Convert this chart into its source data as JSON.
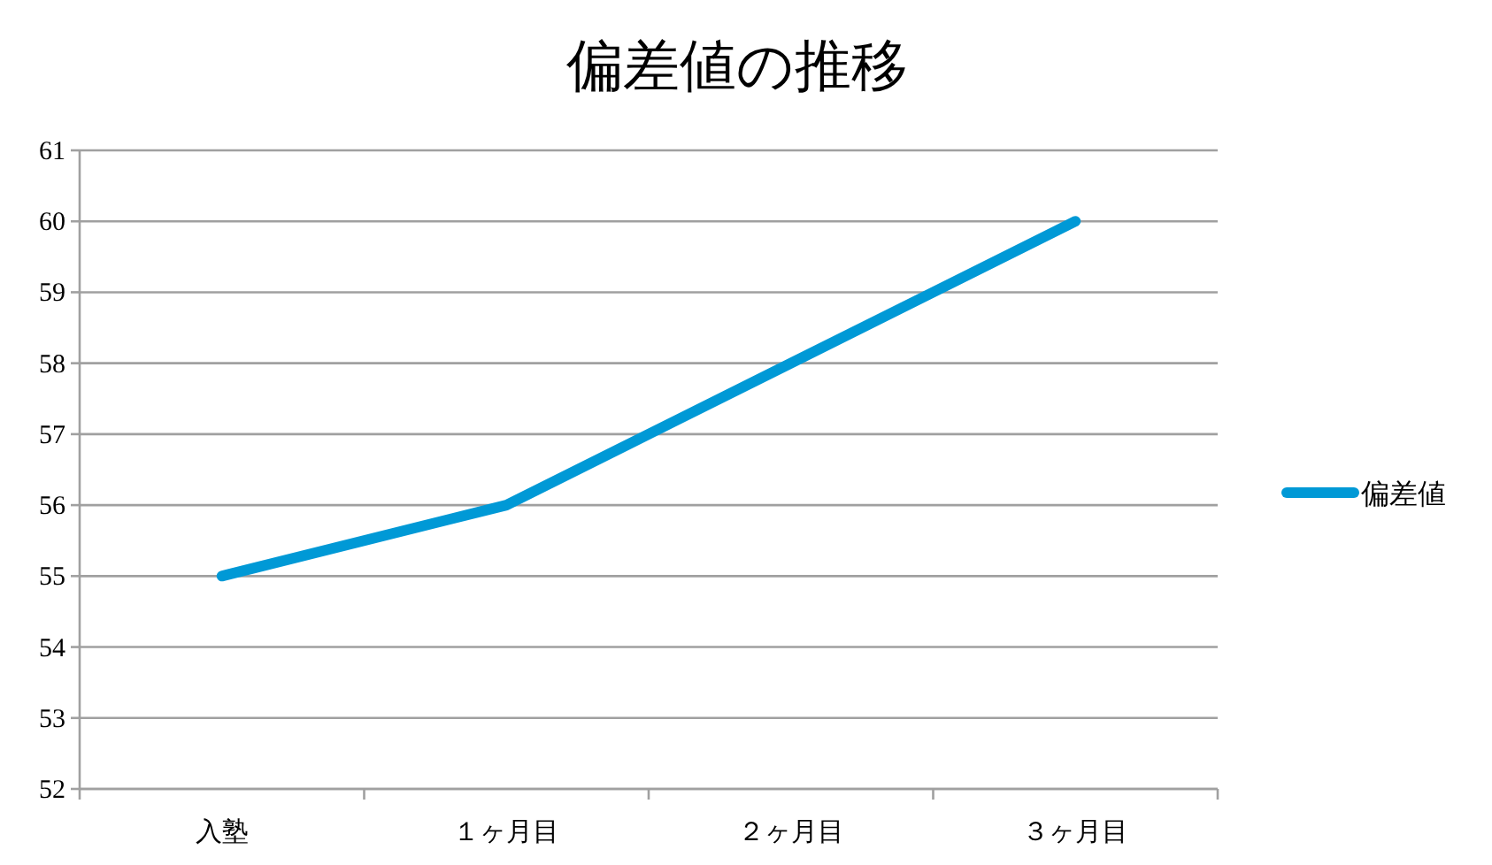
{
  "chart_data": {
    "type": "line",
    "title": "偏差値の推移",
    "categories": [
      "入塾",
      "１ヶ月目",
      "２ヶ月目",
      "３ヶ月目"
    ],
    "series": [
      {
        "name": "偏差値",
        "color": "#0099d6",
        "values": [
          55,
          56,
          58,
          60
        ]
      }
    ],
    "ylim": [
      52,
      61
    ],
    "yticks": [
      52,
      53,
      54,
      55,
      56,
      57,
      58,
      59,
      60,
      61
    ],
    "grid": "y",
    "legend": "right",
    "marker": "none",
    "line_style": "solid"
  }
}
